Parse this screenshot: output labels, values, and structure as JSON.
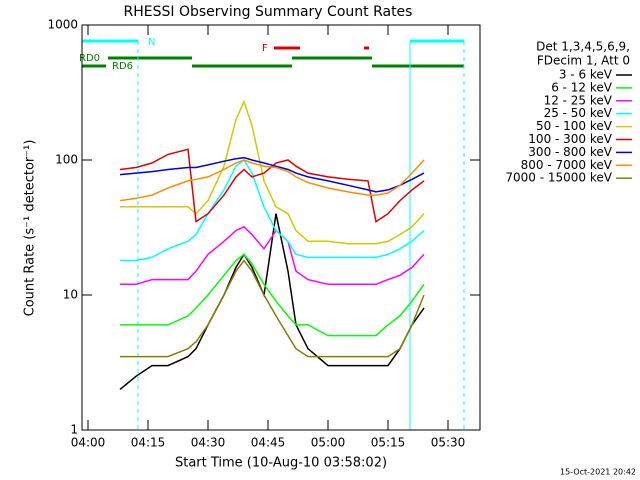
{
  "chart_data": {
    "type": "line",
    "title": "RHESSI Observing Summary Count Rates",
    "x_label": "Start Time (10-Aug-10 03:58:02)",
    "y_label": "Count Rate (s⁻¹ detector⁻¹)",
    "log_y": true,
    "ylim": [
      1,
      1000
    ],
    "yticks": [
      1,
      10,
      100,
      1000
    ],
    "xlim": [
      "03:58:30",
      "05:38"
    ],
    "xticks": [
      "04:00",
      "04:15",
      "04:30",
      "04:45",
      "05:00",
      "05:15",
      "05:30"
    ],
    "legend_header": [
      "Det 1,3,4,5,6,9,",
      "FDecim 1, Att 0"
    ],
    "legend_position": "right",
    "annotations": [
      "N",
      "F",
      "RD0",
      "RD6"
    ],
    "timestamp": "15-Oct-2021 20:42",
    "x": [
      "04:08",
      "04:12",
      "04:16",
      "04:20",
      "04:25",
      "04:27",
      "04:30",
      "04:34",
      "04:37",
      "04:39",
      "04:41",
      "04:44",
      "04:47",
      "04:50",
      "04:52",
      "04:55",
      "05:00",
      "05:05",
      "05:10",
      "05:12",
      "05:15",
      "05:18",
      "05:21",
      "05:24"
    ],
    "series": [
      {
        "name": "3 - 6 keV",
        "color": "#000000",
        "values": [
          2,
          2.5,
          3,
          3,
          3.5,
          4,
          6,
          10,
          16,
          20,
          16,
          10,
          40,
          15,
          6,
          4,
          3,
          3,
          3,
          3,
          3,
          4,
          6,
          8
        ]
      },
      {
        "name": "6 - 12 keV",
        "color": "#00ff00",
        "values": [
          6,
          6,
          6,
          6,
          7,
          8,
          10,
          14,
          18,
          20,
          17,
          12,
          9,
          7,
          6,
          6,
          5,
          5,
          5,
          5,
          6,
          7,
          9,
          12
        ]
      },
      {
        "name": "12 - 25 keV",
        "color": "#ff00ff",
        "values": [
          12,
          12,
          13,
          13,
          13,
          15,
          20,
          25,
          30,
          32,
          28,
          22,
          30,
          25,
          15,
          13,
          12,
          12,
          12,
          12,
          13,
          14,
          16,
          20
        ]
      },
      {
        "name": "25 - 50 keV",
        "color": "#00ffff",
        "values": [
          18,
          18,
          19,
          22,
          25,
          28,
          40,
          60,
          90,
          100,
          80,
          45,
          30,
          25,
          20,
          19,
          19,
          19,
          19,
          19,
          20,
          22,
          25,
          30
        ]
      },
      {
        "name": "50 - 100 keV",
        "color": "#d4c800",
        "values": [
          45,
          45,
          45,
          45,
          45,
          40,
          50,
          90,
          200,
          270,
          180,
          70,
          45,
          40,
          30,
          25,
          25,
          24,
          24,
          24,
          25,
          28,
          32,
          40
        ]
      },
      {
        "name": "100 - 300 keV",
        "color": "#e00000",
        "values": [
          85,
          88,
          95,
          110,
          120,
          35,
          40,
          55,
          75,
          85,
          75,
          80,
          95,
          100,
          90,
          80,
          75,
          72,
          70,
          35,
          40,
          50,
          60,
          70
        ]
      },
      {
        "name": "300 - 800 keV",
        "color": "#0000e0",
        "values": [
          78,
          80,
          82,
          85,
          88,
          88,
          92,
          98,
          102,
          104,
          100,
          95,
          90,
          85,
          80,
          75,
          70,
          65,
          60,
          58,
          60,
          65,
          72,
          80
        ]
      },
      {
        "name": "800 - 7000 keV",
        "color": "#ff8c00",
        "values": [
          50,
          52,
          55,
          62,
          70,
          72,
          75,
          85,
          95,
          100,
          95,
          90,
          88,
          82,
          75,
          68,
          62,
          58,
          55,
          55,
          57,
          65,
          80,
          100
        ]
      },
      {
        "name": "7000 - 15000 keV",
        "color": "#8b7d00",
        "values": [
          3.5,
          3.5,
          3.5,
          3.5,
          4,
          4.5,
          6,
          10,
          15,
          18,
          15,
          10,
          7,
          5,
          4,
          3.5,
          3.5,
          3.5,
          3.5,
          3.5,
          3.5,
          4,
          6,
          10
        ]
      }
    ]
  }
}
